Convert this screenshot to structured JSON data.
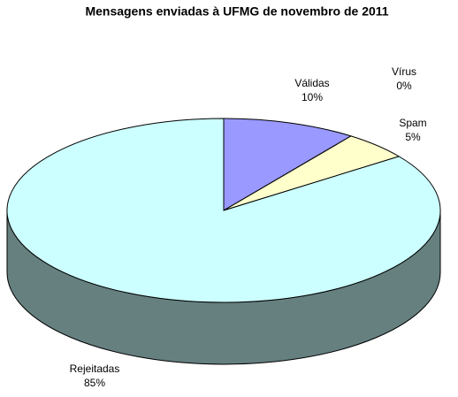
{
  "chart_data": {
    "type": "pie3d",
    "title": "Mensagens enviadas à UFMG de novembro de 2011",
    "categories": [
      "Válidas",
      "Vírus",
      "Spam",
      "Rejeitadas"
    ],
    "values": [
      10,
      0,
      5,
      85
    ],
    "value_labels": [
      "10%",
      "0%",
      "5%",
      "85%"
    ],
    "colors": [
      "#9999ff",
      "#993366",
      "#ffffcc",
      "#ccffff"
    ]
  }
}
